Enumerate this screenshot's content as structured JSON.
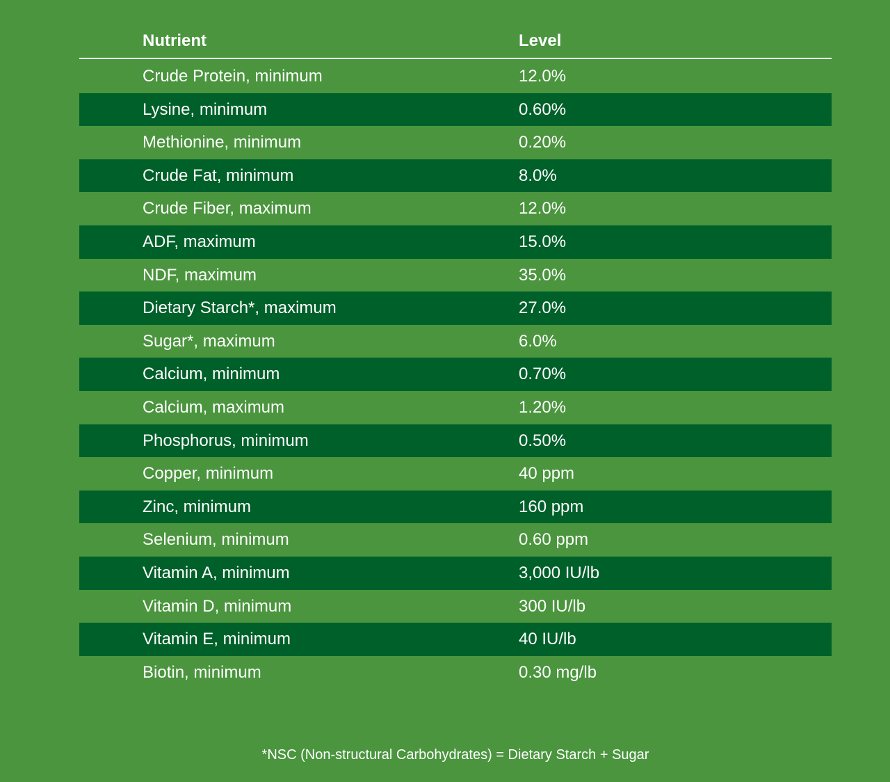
{
  "table": {
    "headers": {
      "nutrient": "Nutrient",
      "level": "Level"
    },
    "rows": [
      {
        "nutrient": "Crude Protein, minimum",
        "level": "12.0%"
      },
      {
        "nutrient": "Lysine, minimum",
        "level": "0.60%"
      },
      {
        "nutrient": "Methionine, minimum",
        "level": "0.20%"
      },
      {
        "nutrient": "Crude Fat, minimum",
        "level": "8.0%"
      },
      {
        "nutrient": "Crude Fiber, maximum",
        "level": "12.0%"
      },
      {
        "nutrient": "ADF, maximum",
        "level": "15.0%"
      },
      {
        "nutrient": "NDF, maximum",
        "level": "35.0%"
      },
      {
        "nutrient": "Dietary Starch*, maximum",
        "level": "27.0%"
      },
      {
        "nutrient": "Sugar*, maximum",
        "level": "6.0%"
      },
      {
        "nutrient": "Calcium, minimum",
        "level": "0.70%"
      },
      {
        "nutrient": "Calcium, maximum",
        "level": "1.20%"
      },
      {
        "nutrient": "Phosphorus, minimum",
        "level": "0.50%"
      },
      {
        "nutrient": "Copper, minimum",
        "level": "40 ppm"
      },
      {
        "nutrient": "Zinc, minimum",
        "level": "160 ppm"
      },
      {
        "nutrient": "Selenium, minimum",
        "level": "0.60 ppm"
      },
      {
        "nutrient": "Vitamin A, minimum",
        "level": "3,000 IU/lb"
      },
      {
        "nutrient": "Vitamin D, minimum",
        "level": "300 IU/lb"
      },
      {
        "nutrient": "Vitamin E, minimum",
        "level": "40 IU/lb"
      },
      {
        "nutrient": "Biotin, minimum",
        "level": "0.30 mg/lb"
      }
    ]
  },
  "footnote": "*NSC (Non-structural Carbohydrates) = Dietary Starch + Sugar",
  "colors": {
    "background": "#4a953e",
    "stripe": "#00602a",
    "text": "#ffffff"
  }
}
